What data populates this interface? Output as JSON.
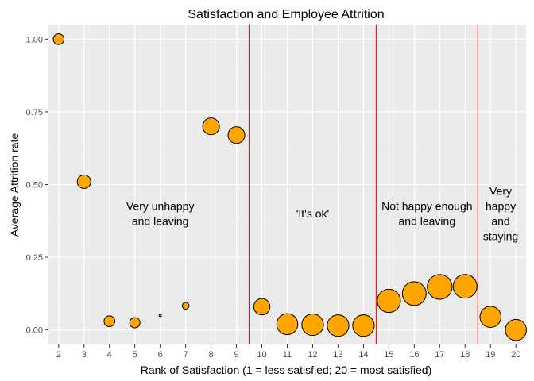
{
  "chart_data": {
    "type": "scatter",
    "title": "Satisfaction and Employee Attrition",
    "xlabel": "Rank of Satisfaction (1 = less satisfied; 20 = most satisfied)",
    "ylabel": "Average Attrition rate",
    "x": [
      2,
      3,
      4,
      5,
      6,
      7,
      8,
      9,
      10,
      11,
      12,
      13,
      14,
      15,
      16,
      17,
      18,
      19,
      20
    ],
    "y": [
      1.0,
      0.51,
      0.03,
      0.025,
      0.05,
      0.083,
      0.7,
      0.67,
      0.08,
      0.02,
      0.018,
      0.015,
      0.015,
      0.1,
      0.125,
      0.148,
      0.15,
      0.045,
      0.0
    ],
    "size_relative": [
      0.4,
      0.5,
      0.4,
      0.38,
      0.05,
      0.25,
      0.62,
      0.62,
      0.6,
      0.78,
      0.8,
      0.8,
      0.8,
      0.86,
      0.88,
      0.92,
      0.88,
      0.78,
      0.78
    ],
    "point_color": "#FFA500",
    "xlim": [
      1.6,
      20.4
    ],
    "ylim": [
      -0.05,
      1.05
    ],
    "x_ticks": [
      "2",
      "3",
      "4",
      "5",
      "6",
      "7",
      "8",
      "9",
      "10",
      "11",
      "12",
      "13",
      "14",
      "15",
      "16",
      "17",
      "18",
      "19",
      "20"
    ],
    "y_ticks": [
      "0.00",
      "0.25",
      "0.50",
      "0.75",
      "1.00"
    ],
    "y_tick_values": [
      0,
      0.25,
      0.5,
      0.75,
      1.0
    ],
    "vlines": [
      9.5,
      14.5,
      18.5
    ],
    "vline_color": "#FF0000",
    "grid": true,
    "panel_background": "#EBEBEB",
    "annotations": [
      {
        "lines": [
          "Very unhappy",
          "and leaving"
        ],
        "x": 6,
        "y": 0.4
      },
      {
        "lines": [
          "'It's ok'"
        ],
        "x": 12,
        "y": 0.4
      },
      {
        "lines": [
          "Not happy enough",
          "and leaving"
        ],
        "x": 16.5,
        "y": 0.4
      },
      {
        "lines": [
          "Very",
          "happy",
          "and",
          "staying"
        ],
        "x": 19.4,
        "y": 0.4
      }
    ]
  }
}
